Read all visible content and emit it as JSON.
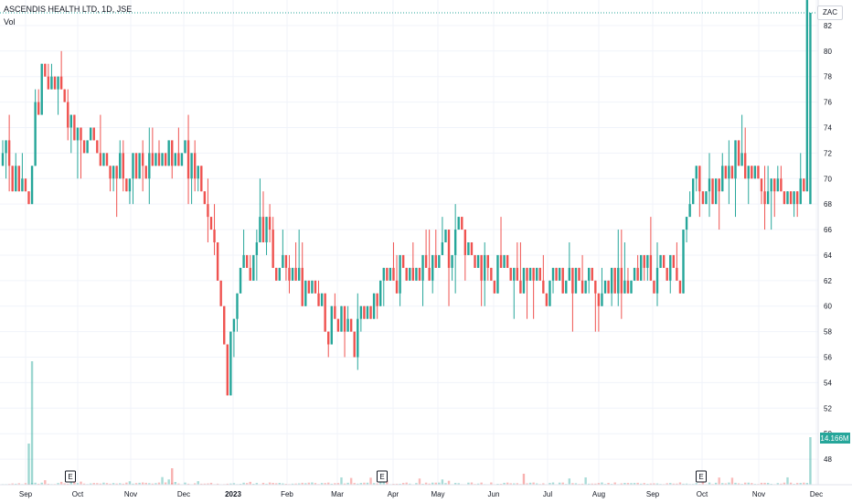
{
  "header": {
    "title": "ASCENDIS HEALTH LTD, 1D, JSE",
    "volume_label": "Vol",
    "currency": "ZAC"
  },
  "colors": {
    "up": "#26a69a",
    "down": "#ef5350",
    "last_line": "#26a69a",
    "grid": "#f0f3fa"
  },
  "earnings_marker": "E",
  "chart_data": {
    "type": "candlestick",
    "title": "ASCENDIS HEALTH LTD, 1D, JSE",
    "ylabel": "ZAC",
    "ylim": [
      46.5,
      83.5
    ],
    "y_ticks": [
      48,
      50,
      52,
      54,
      56,
      58,
      60,
      62,
      64,
      66,
      68,
      70,
      72,
      74,
      76,
      78,
      80,
      82
    ],
    "x_ticks": [
      "Sep",
      "Oct",
      "Nov",
      "Dec",
      "2023",
      "Feb",
      "Mar",
      "Apr",
      "May",
      "Jun",
      "Jul",
      "Aug",
      "Sep",
      "Oct",
      "Nov",
      "Dec"
    ],
    "last_price": 83,
    "last_volume": "14.166M",
    "earnings_events": [
      "Oct",
      "Apr",
      "Oct"
    ],
    "price_path": [
      {
        "day": 0,
        "price": 71
      },
      {
        "day": 6,
        "price": 70
      },
      {
        "day": 8,
        "price": 68
      },
      {
        "day": 10,
        "price": 75
      },
      {
        "day": 12,
        "price": 78
      },
      {
        "day": 15,
        "price": 77
      },
      {
        "day": 18,
        "price": 76
      },
      {
        "day": 22,
        "price": 74
      },
      {
        "day": 30,
        "price": 71
      },
      {
        "day": 40,
        "price": 71
      },
      {
        "day": 50,
        "price": 72
      },
      {
        "day": 60,
        "price": 71
      },
      {
        "day": 64,
        "price": 66
      },
      {
        "day": 67,
        "price": 61
      },
      {
        "day": 69,
        "price": 52
      },
      {
        "day": 70,
        "price": 58
      },
      {
        "day": 74,
        "price": 64
      },
      {
        "day": 80,
        "price": 66
      },
      {
        "day": 86,
        "price": 63
      },
      {
        "day": 93,
        "price": 61
      },
      {
        "day": 98,
        "price": 59
      },
      {
        "day": 103,
        "price": 60
      },
      {
        "day": 108,
        "price": 57
      },
      {
        "day": 112,
        "price": 59
      },
      {
        "day": 118,
        "price": 62
      },
      {
        "day": 128,
        "price": 63
      },
      {
        "day": 135,
        "price": 63
      },
      {
        "day": 140,
        "price": 66
      },
      {
        "day": 146,
        "price": 63
      },
      {
        "day": 155,
        "price": 63
      },
      {
        "day": 165,
        "price": 62
      },
      {
        "day": 175,
        "price": 62
      },
      {
        "day": 183,
        "price": 62
      },
      {
        "day": 190,
        "price": 62
      },
      {
        "day": 196,
        "price": 63
      },
      {
        "day": 202,
        "price": 63
      },
      {
        "day": 208,
        "price": 63
      },
      {
        "day": 212,
        "price": 70
      },
      {
        "day": 218,
        "price": 69
      },
      {
        "day": 224,
        "price": 72
      },
      {
        "day": 230,
        "price": 70
      },
      {
        "day": 236,
        "price": 69
      },
      {
        "day": 242,
        "price": 69
      },
      {
        "day": 246,
        "price": 69
      },
      {
        "day": 247,
        "price": 83
      }
    ]
  }
}
